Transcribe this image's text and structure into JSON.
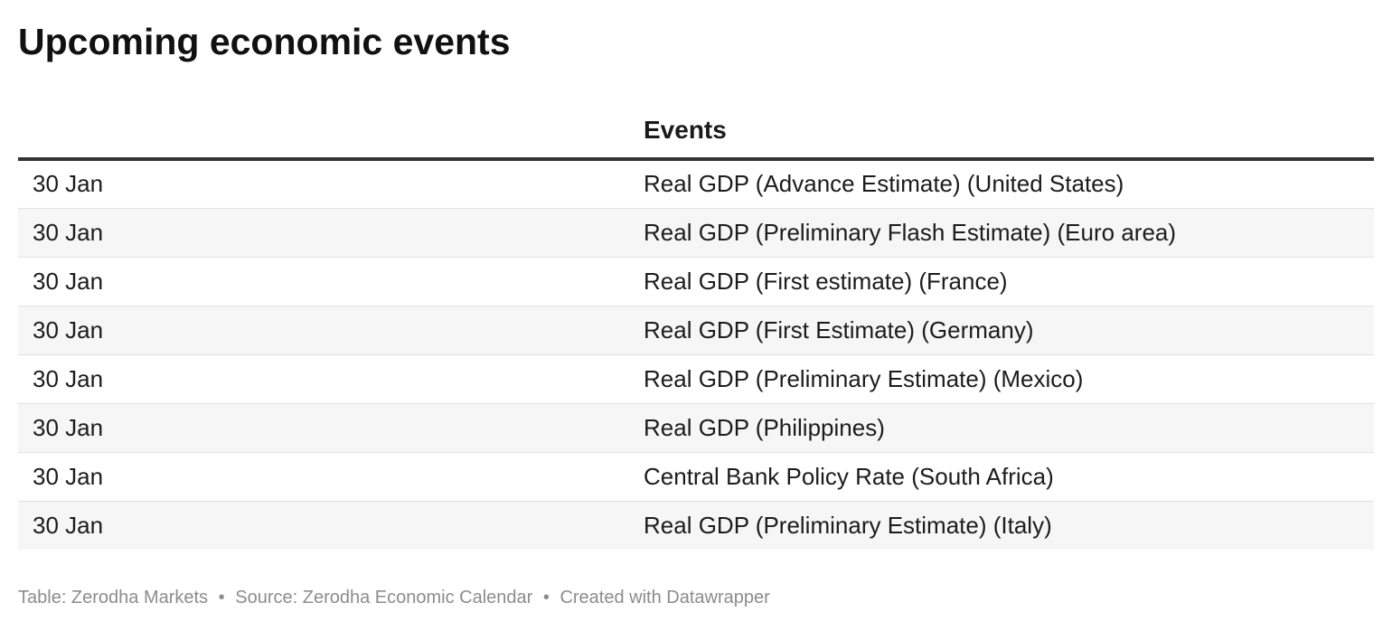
{
  "title": "Upcoming economic events",
  "table": {
    "columns": [
      "",
      "Events"
    ],
    "rows": [
      [
        "30 Jan",
        "Real GDP (Advance Estimate) (United States)"
      ],
      [
        "30 Jan",
        "Real GDP (Preliminary Flash Estimate) (Euro area)"
      ],
      [
        "30 Jan",
        "Real GDP (First estimate) (France)"
      ],
      [
        "30 Jan",
        "Real GDP (First Estimate) (Germany)"
      ],
      [
        "30 Jan",
        "Real GDP (Preliminary Estimate) (Mexico)"
      ],
      [
        "30 Jan",
        "Real GDP (Philippines)"
      ],
      [
        "30 Jan",
        "Central Bank Policy Rate (South Africa)"
      ],
      [
        "30 Jan",
        "Real GDP (Preliminary Estimate) (Italy)"
      ]
    ]
  },
  "footer": {
    "table_credit": "Table: Zerodha Markets",
    "separator": "•",
    "source": "Source: Zerodha Economic Calendar",
    "created_with": "Created with Datawrapper"
  }
}
